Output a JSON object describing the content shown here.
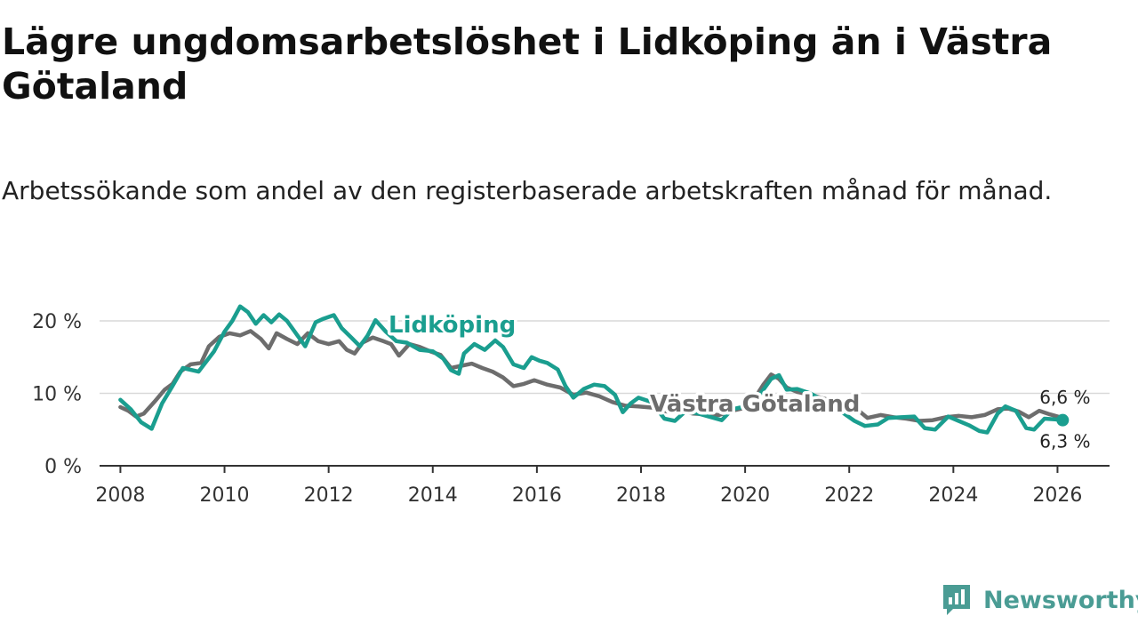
{
  "title": "Lägre ungdomsarbetslöshet i Lidköping än i Västra Götaland",
  "subtitle": "Arbetssökande som andel av den registerbaserade arbetskraften månad för månad.",
  "brand": {
    "name": "Newsworthy",
    "icon": "newsworthy-logo-icon"
  },
  "colors": {
    "lidkoping": "#1a9e8f",
    "vastra_gotaland": "#6d6d6d",
    "grid": "#d9d9d9",
    "axis": "#333333"
  },
  "chart_data": {
    "type": "line",
    "title": "Lägre ungdomsarbetslöshet i Lidköping än i Västra Götaland",
    "xlabel": "",
    "ylabel": "",
    "xlim": [
      2007.6,
      2027.0
    ],
    "ylim": [
      0,
      22
    ],
    "x_ticks": [
      {
        "value": 2008,
        "label": "2008"
      },
      {
        "value": 2010,
        "label": "2010"
      },
      {
        "value": 2012,
        "label": "2012"
      },
      {
        "value": 2014,
        "label": "2014"
      },
      {
        "value": 2016,
        "label": "2016"
      },
      {
        "value": 2018,
        "label": "2018"
      },
      {
        "value": 2020,
        "label": "2020"
      },
      {
        "value": 2022,
        "label": "2022"
      },
      {
        "value": 2024,
        "label": "2024"
      },
      {
        "value": 2026,
        "label": "2026"
      }
    ],
    "y_ticks": [
      {
        "value": 0,
        "label": "0 %"
      },
      {
        "value": 10,
        "label": "10 %"
      },
      {
        "value": 20,
        "label": "20 %"
      }
    ],
    "series": [
      {
        "name": "Lidköping",
        "label": "Lidköping",
        "color": "#1a9e8f",
        "end_label": "6,3 %",
        "points": [
          [
            2008.0,
            9.1
          ],
          [
            2008.2,
            7.8
          ],
          [
            2008.4,
            6.0
          ],
          [
            2008.6,
            5.1
          ],
          [
            2008.8,
            8.6
          ],
          [
            2009.0,
            11.0
          ],
          [
            2009.2,
            13.5
          ],
          [
            2009.5,
            13.0
          ],
          [
            2009.8,
            15.8
          ],
          [
            2010.0,
            18.5
          ],
          [
            2010.15,
            20.0
          ],
          [
            2010.3,
            22.0
          ],
          [
            2010.45,
            21.2
          ],
          [
            2010.6,
            19.6
          ],
          [
            2010.75,
            20.8
          ],
          [
            2010.9,
            19.8
          ],
          [
            2011.05,
            20.9
          ],
          [
            2011.2,
            20.0
          ],
          [
            2011.4,
            18.0
          ],
          [
            2011.55,
            16.5
          ],
          [
            2011.75,
            19.8
          ],
          [
            2011.9,
            20.3
          ],
          [
            2012.1,
            20.8
          ],
          [
            2012.25,
            19.0
          ],
          [
            2012.45,
            17.6
          ],
          [
            2012.6,
            16.5
          ],
          [
            2012.75,
            18.0
          ],
          [
            2012.9,
            20.1
          ],
          [
            2013.1,
            18.5
          ],
          [
            2013.3,
            17.2
          ],
          [
            2013.5,
            17.0
          ],
          [
            2013.75,
            16.0
          ],
          [
            2014.0,
            15.8
          ],
          [
            2014.2,
            14.8
          ],
          [
            2014.35,
            13.2
          ],
          [
            2014.5,
            12.7
          ],
          [
            2014.6,
            15.5
          ],
          [
            2014.8,
            16.8
          ],
          [
            2015.0,
            16.0
          ],
          [
            2015.2,
            17.3
          ],
          [
            2015.35,
            16.4
          ],
          [
            2015.55,
            14.0
          ],
          [
            2015.75,
            13.5
          ],
          [
            2015.9,
            15.0
          ],
          [
            2016.05,
            14.5
          ],
          [
            2016.2,
            14.2
          ],
          [
            2016.4,
            13.3
          ],
          [
            2016.55,
            11.0
          ],
          [
            2016.7,
            9.4
          ],
          [
            2016.9,
            10.6
          ],
          [
            2017.1,
            11.2
          ],
          [
            2017.3,
            11.0
          ],
          [
            2017.5,
            9.8
          ],
          [
            2017.65,
            7.4
          ],
          [
            2017.8,
            8.6
          ],
          [
            2017.95,
            9.4
          ],
          [
            2018.2,
            8.8
          ],
          [
            2018.45,
            6.5
          ],
          [
            2018.65,
            6.2
          ],
          [
            2018.85,
            7.5
          ],
          [
            2019.05,
            7.3
          ],
          [
            2019.3,
            6.8
          ],
          [
            2019.55,
            6.3
          ],
          [
            2019.75,
            7.8
          ],
          [
            2020.0,
            8.2
          ],
          [
            2020.2,
            9.0
          ],
          [
            2020.35,
            10.5
          ],
          [
            2020.5,
            12.0
          ],
          [
            2020.65,
            12.5
          ],
          [
            2020.8,
            10.5
          ],
          [
            2021.0,
            10.6
          ],
          [
            2021.25,
            10.0
          ],
          [
            2021.5,
            9.0
          ],
          [
            2021.7,
            8.0
          ],
          [
            2021.9,
            7.2
          ],
          [
            2022.1,
            6.2
          ],
          [
            2022.3,
            5.5
          ],
          [
            2022.55,
            5.7
          ],
          [
            2022.75,
            6.6
          ],
          [
            2023.0,
            6.7
          ],
          [
            2023.25,
            6.8
          ],
          [
            2023.45,
            5.2
          ],
          [
            2023.65,
            5.0
          ],
          [
            2023.9,
            6.8
          ],
          [
            2024.1,
            6.2
          ],
          [
            2024.3,
            5.6
          ],
          [
            2024.5,
            4.8
          ],
          [
            2024.65,
            4.6
          ],
          [
            2024.85,
            7.2
          ],
          [
            2025.0,
            8.2
          ],
          [
            2025.2,
            7.6
          ],
          [
            2025.4,
            5.2
          ],
          [
            2025.55,
            5.0
          ],
          [
            2025.75,
            6.5
          ],
          [
            2025.95,
            6.4
          ],
          [
            2026.1,
            6.3
          ]
        ]
      },
      {
        "name": "Västra Götaland",
        "label": "Västra Götaland",
        "color": "#6d6d6d",
        "end_label": "6,6 %",
        "points": [
          [
            2008.0,
            8.1
          ],
          [
            2008.15,
            7.6
          ],
          [
            2008.3,
            6.8
          ],
          [
            2008.45,
            7.2
          ],
          [
            2008.65,
            8.8
          ],
          [
            2008.85,
            10.5
          ],
          [
            2009.0,
            11.3
          ],
          [
            2009.15,
            13.0
          ],
          [
            2009.35,
            14.0
          ],
          [
            2009.55,
            14.2
          ],
          [
            2009.7,
            16.5
          ],
          [
            2009.9,
            17.8
          ],
          [
            2010.1,
            18.3
          ],
          [
            2010.3,
            18.0
          ],
          [
            2010.5,
            18.6
          ],
          [
            2010.7,
            17.5
          ],
          [
            2010.85,
            16.2
          ],
          [
            2011.0,
            18.3
          ],
          [
            2011.2,
            17.5
          ],
          [
            2011.4,
            16.8
          ],
          [
            2011.6,
            18.3
          ],
          [
            2011.8,
            17.2
          ],
          [
            2012.0,
            16.8
          ],
          [
            2012.2,
            17.2
          ],
          [
            2012.35,
            16.0
          ],
          [
            2012.5,
            15.5
          ],
          [
            2012.65,
            17.0
          ],
          [
            2012.85,
            17.7
          ],
          [
            2013.05,
            17.2
          ],
          [
            2013.2,
            16.8
          ],
          [
            2013.35,
            15.2
          ],
          [
            2013.55,
            16.8
          ],
          [
            2013.75,
            16.4
          ],
          [
            2013.95,
            15.8
          ],
          [
            2014.15,
            15.3
          ],
          [
            2014.35,
            13.5
          ],
          [
            2014.55,
            13.8
          ],
          [
            2014.75,
            14.1
          ],
          [
            2014.95,
            13.5
          ],
          [
            2015.15,
            13.0
          ],
          [
            2015.35,
            12.2
          ],
          [
            2015.55,
            11.0
          ],
          [
            2015.75,
            11.3
          ],
          [
            2015.95,
            11.8
          ],
          [
            2016.2,
            11.2
          ],
          [
            2016.45,
            10.8
          ],
          [
            2016.7,
            9.8
          ],
          [
            2016.95,
            10.1
          ],
          [
            2017.2,
            9.6
          ],
          [
            2017.45,
            8.8
          ],
          [
            2017.7,
            8.3
          ],
          [
            2017.95,
            8.2
          ],
          [
            2018.25,
            8.0
          ],
          [
            2018.5,
            7.5
          ],
          [
            2018.75,
            7.6
          ],
          [
            2019.0,
            7.2
          ],
          [
            2019.25,
            7.1
          ],
          [
            2019.5,
            7.0
          ],
          [
            2019.75,
            7.6
          ],
          [
            2020.0,
            8.0
          ],
          [
            2020.2,
            9.5
          ],
          [
            2020.35,
            11.2
          ],
          [
            2020.5,
            12.6
          ],
          [
            2020.65,
            12.0
          ],
          [
            2020.8,
            10.8
          ],
          [
            2021.0,
            10.2
          ],
          [
            2021.25,
            9.8
          ],
          [
            2021.5,
            9.3
          ],
          [
            2021.75,
            8.8
          ],
          [
            2022.0,
            8.4
          ],
          [
            2022.2,
            7.5
          ],
          [
            2022.35,
            6.6
          ],
          [
            2022.6,
            7.0
          ],
          [
            2022.85,
            6.7
          ],
          [
            2023.1,
            6.5
          ],
          [
            2023.35,
            6.2
          ],
          [
            2023.6,
            6.3
          ],
          [
            2023.85,
            6.7
          ],
          [
            2024.1,
            6.9
          ],
          [
            2024.35,
            6.7
          ],
          [
            2024.6,
            7.0
          ],
          [
            2024.85,
            7.8
          ],
          [
            2025.05,
            7.9
          ],
          [
            2025.25,
            7.5
          ],
          [
            2025.45,
            6.7
          ],
          [
            2025.65,
            7.6
          ],
          [
            2025.85,
            7.1
          ],
          [
            2026.1,
            6.6
          ]
        ]
      }
    ]
  }
}
